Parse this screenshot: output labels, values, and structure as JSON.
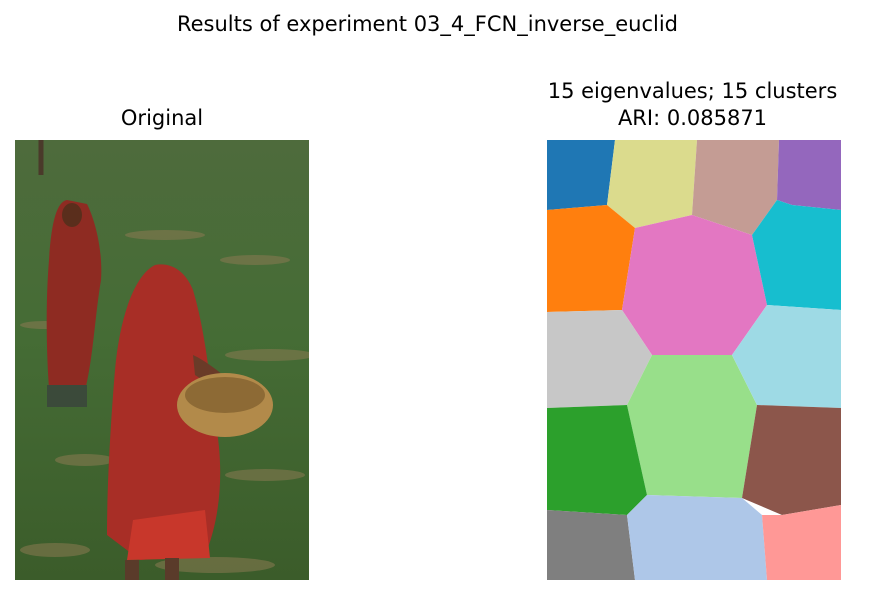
{
  "figure": {
    "suptitle": "Results of experiment 03_4_FCN_inverse_euclid"
  },
  "left_panel": {
    "title": "Original",
    "scene": "two women in red saris walking through a green field, one carrying a woven basket"
  },
  "right_panel": {
    "title_line1": "15 eigenvalues; 15 clusters",
    "title_line2": "ARI: 0.085871",
    "segment_colors": [
      "#1f77b4",
      "#dbdb8d",
      "#c49c94",
      "#9467bd",
      "#ff7f0e",
      "#e377c2",
      "#17becf",
      "#c7c7c7",
      "#98df8a",
      "#9edae5",
      "#2ca02c",
      "#8c564b",
      "#7f7f7f",
      "#aec7e8",
      "#ff9896"
    ]
  }
}
